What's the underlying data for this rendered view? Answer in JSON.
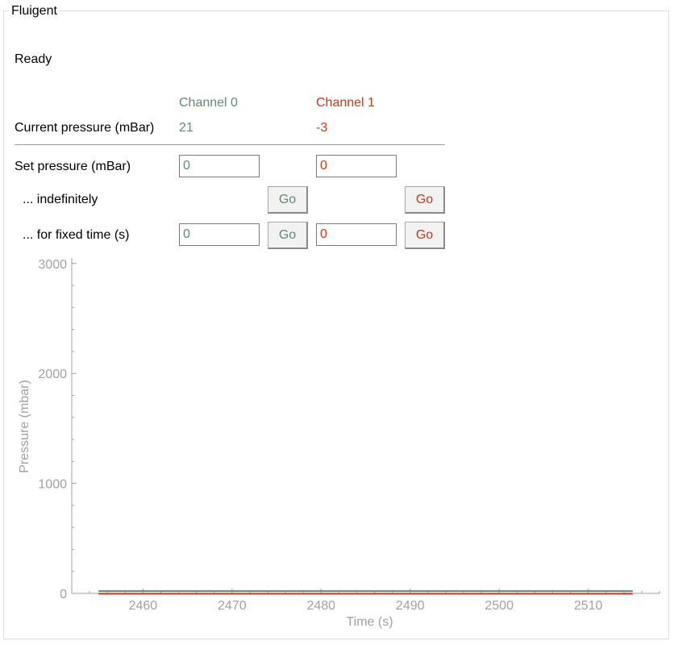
{
  "panel": {
    "title": "Fluigent",
    "status": "Ready"
  },
  "channels": [
    {
      "name": "Channel 0",
      "current_pressure": "21",
      "set_pressure": "0",
      "fixed_time": "0",
      "go_indefinitely": "Go",
      "go_fixed": "Go",
      "color": "#5e8a6f"
    },
    {
      "name": "Channel 1",
      "current_pressure": "-3",
      "set_pressure": "0",
      "fixed_time": "0",
      "go_indefinitely": "Go",
      "go_fixed": "Go",
      "color": "#c0391b"
    }
  ],
  "labels": {
    "current_pressure": "Current pressure (mBar)",
    "set_pressure": "Set pressure (mBar)",
    "indefinitely": "... indefinitely",
    "fixed_time": "... for fixed time (s)"
  },
  "chart_data": {
    "type": "line",
    "xlabel": "Time (s)",
    "ylabel": "Pressure (mbar)",
    "xlim": [
      2452,
      2518
    ],
    "ylim": [
      0,
      3050
    ],
    "x_ticks": [
      2460,
      2470,
      2480,
      2490,
      2500,
      2510
    ],
    "y_ticks": [
      0,
      1000,
      2000,
      3000
    ],
    "x": [
      2455,
      2515
    ],
    "series": [
      {
        "values": [
          21,
          21
        ],
        "color": "#5e8a6f"
      },
      {
        "values": [
          -3,
          -3
        ],
        "color": "#c0391b"
      }
    ],
    "grid": false
  }
}
